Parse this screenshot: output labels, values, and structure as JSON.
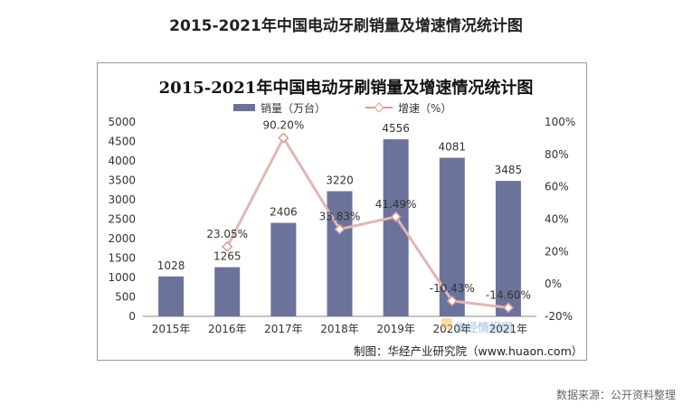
{
  "header": {
    "title": "2015-2021年中国电动牙刷销量及增速情况统计图"
  },
  "colors": {
    "bar": "#6b739b",
    "line": "#e2b6b6",
    "marker_stroke": "#d99a9a",
    "grid_text": "#333333"
  },
  "chart_data": {
    "type": "bar",
    "title": "2015-2021年中国电动牙刷销量及增速情况统计图",
    "categories": [
      "2015年",
      "2016年",
      "2017年",
      "2018年",
      "2019年",
      "2020年",
      "2021年"
    ],
    "series": [
      {
        "name": "销量（万台）",
        "type": "bar",
        "axis": "left",
        "values": [
          1028,
          1265,
          2406,
          3220,
          4556,
          4081,
          3485
        ],
        "labels": [
          "1028",
          "1265",
          "2406",
          "3220",
          "4556",
          "4081",
          "3485"
        ]
      },
      {
        "name": "增速（%）",
        "type": "line",
        "axis": "right",
        "values": [
          null,
          23.05,
          90.2,
          33.83,
          41.49,
          -10.43,
          -14.6
        ],
        "labels": [
          "",
          "23.05%",
          "90.20%",
          "33.83%",
          "41.49%",
          "-10.43%",
          "-14.60%"
        ]
      }
    ],
    "y_left": {
      "min": 0,
      "max": 5000,
      "ticks": [
        "0",
        "500",
        "1000",
        "1500",
        "2000",
        "2500",
        "3000",
        "3500",
        "4000",
        "4500",
        "5000"
      ]
    },
    "y_right": {
      "min": -20,
      "max": 100,
      "ticks": [
        "-20%",
        "0%",
        "20%",
        "40%",
        "60%",
        "80%",
        "100%"
      ]
    },
    "grid": false,
    "legend": "top"
  },
  "source": "制图：华经产业研究院（www.huaon.com）",
  "watermark": "华经情报网",
  "footer": {
    "data_source": "数据来源：公开资料整理"
  }
}
